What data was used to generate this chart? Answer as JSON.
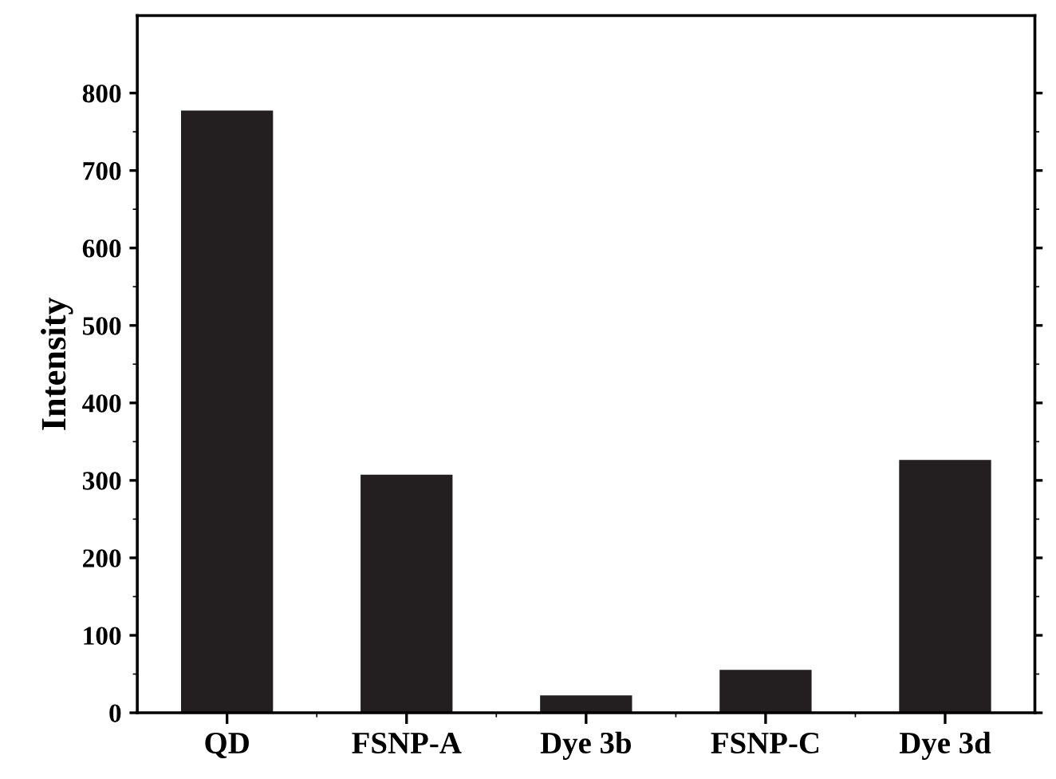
{
  "chart_data": {
    "type": "bar",
    "ylabel": "Intensity",
    "categories": [
      "QD",
      "FSNP-A",
      "Dye 3b",
      "FSNP-C",
      "Dye 3d"
    ],
    "values": [
      776,
      306,
      21,
      54,
      325
    ],
    "color": "#231f20",
    "ylim": [
      0,
      900
    ],
    "yticks": [
      0,
      100,
      200,
      300,
      400,
      500,
      600,
      700,
      800
    ],
    "grid": false,
    "legend": false
  }
}
